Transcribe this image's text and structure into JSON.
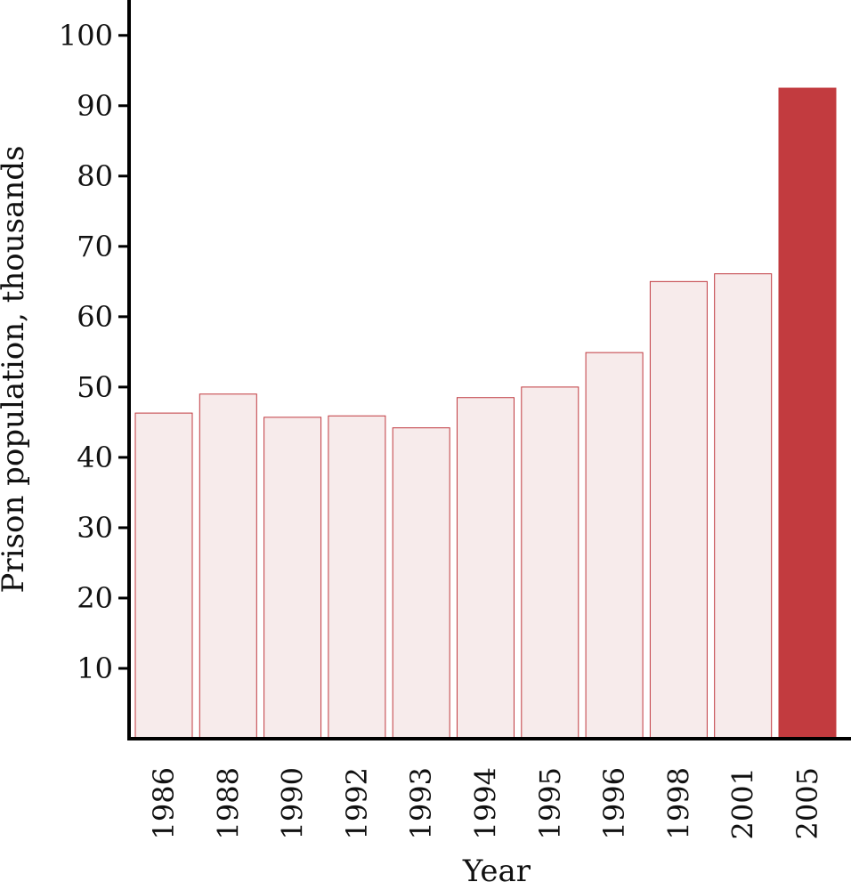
{
  "chart_data": {
    "type": "bar",
    "title": "",
    "xlabel": "Year",
    "ylabel": "Prison population, thousands",
    "categories": [
      "1986",
      "1988",
      "1990",
      "1992",
      "1993",
      "1994",
      "1995",
      "1996",
      "1998",
      "2001",
      "2005"
    ],
    "values": [
      46.3,
      49.0,
      45.7,
      45.9,
      44.2,
      48.5,
      50.0,
      54.9,
      65.0,
      66.1,
      92.5
    ],
    "yticks": [
      "10",
      "20",
      "30",
      "40",
      "50",
      "60",
      "70",
      "80",
      "90",
      "100"
    ],
    "ylim": [
      0,
      102.5
    ],
    "grid": false,
    "highlight_index": 10,
    "colors": {
      "bar_fill": "#f7ebeb",
      "bar_stroke": "#c0393f",
      "highlight_fill": "#c23b3f",
      "axis": "#000000"
    }
  }
}
